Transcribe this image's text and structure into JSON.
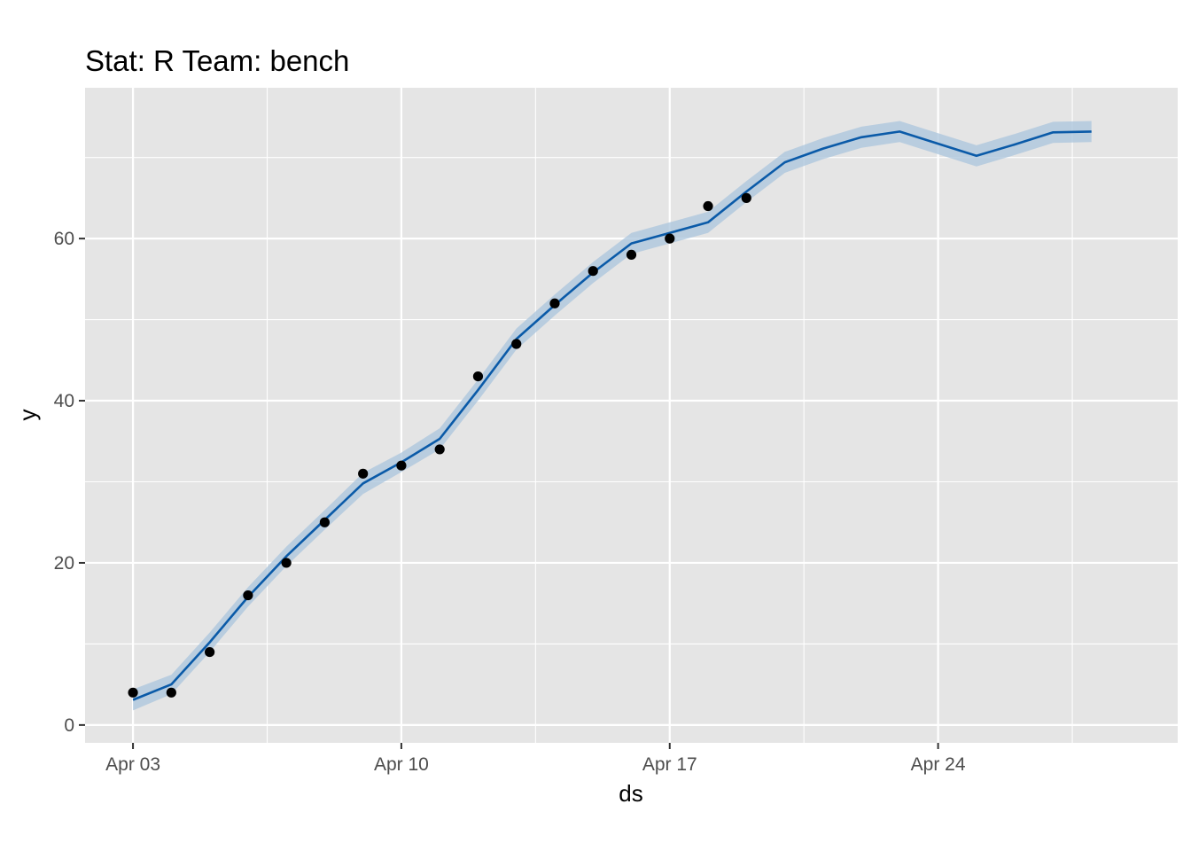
{
  "chart_data": {
    "type": "line",
    "title": "Stat: R Team: bench",
    "xlabel": "ds",
    "ylabel": "y",
    "x_type": "date",
    "x_range": [
      "2020-04-01 18:00",
      "2020-04-30 06:00"
    ],
    "ylim": [
      -2.2,
      78.6
    ],
    "x_ticks": [
      {
        "date": "2020-04-03",
        "label": "Apr 03"
      },
      {
        "date": "2020-04-10",
        "label": "Apr 10"
      },
      {
        "date": "2020-04-17",
        "label": "Apr 17"
      },
      {
        "date": "2020-04-24",
        "label": "Apr 24"
      }
    ],
    "x_minor_grid": [
      "2020-04-06 12:00",
      "2020-04-13 12:00",
      "2020-04-20 12:00",
      "2020-04-27 12:00"
    ],
    "y_ticks": [
      0,
      20,
      40,
      60
    ],
    "y_minor_grid": [
      10,
      30,
      50,
      70
    ],
    "grid": true,
    "panel_background": "#e5e5e5",
    "colors": {
      "forecast_line": "#0a5aa8",
      "interval_band": "#a9c4dc",
      "observed_points": "#000000",
      "grid": "#ffffff"
    },
    "series": [
      {
        "kind": "points",
        "x": [
          "2020-04-03",
          "2020-04-04",
          "2020-04-05",
          "2020-04-06",
          "2020-04-07",
          "2020-04-08",
          "2020-04-09",
          "2020-04-10",
          "2020-04-11",
          "2020-04-12",
          "2020-04-13",
          "2020-04-14",
          "2020-04-15",
          "2020-04-16",
          "2020-04-17",
          "2020-04-18",
          "2020-04-19"
        ],
        "y": [
          4,
          4,
          9,
          16,
          20,
          25,
          31,
          32,
          34,
          43,
          47,
          52,
          56,
          58,
          60,
          64,
          65
        ]
      },
      {
        "kind": "line",
        "x": [
          "2020-04-03",
          "2020-04-04",
          "2020-04-05",
          "2020-04-06",
          "2020-04-07",
          "2020-04-08",
          "2020-04-09",
          "2020-04-10",
          "2020-04-11",
          "2020-04-12",
          "2020-04-13",
          "2020-04-14",
          "2020-04-15",
          "2020-04-16",
          "2020-04-17",
          "2020-04-18",
          "2020-04-19",
          "2020-04-20",
          "2020-04-21",
          "2020-04-22",
          "2020-04-23",
          "2020-04-24",
          "2020-04-25",
          "2020-04-26",
          "2020-04-27",
          "2020-04-28"
        ],
        "y": [
          3.1,
          5.0,
          10.2,
          15.8,
          20.8,
          25.3,
          29.8,
          32.4,
          35.3,
          41.3,
          47.6,
          51.8,
          55.8,
          59.4,
          60.7,
          62.0,
          65.8,
          69.4,
          71.1,
          72.5,
          73.2,
          71.7,
          70.2,
          71.6,
          73.1,
          73.2
        ]
      },
      {
        "kind": "band",
        "x": [
          "2020-04-03",
          "2020-04-04",
          "2020-04-05",
          "2020-04-06",
          "2020-04-07",
          "2020-04-08",
          "2020-04-09",
          "2020-04-10",
          "2020-04-11",
          "2020-04-12",
          "2020-04-13",
          "2020-04-14",
          "2020-04-15",
          "2020-04-16",
          "2020-04-17",
          "2020-04-18",
          "2020-04-19",
          "2020-04-20",
          "2020-04-21",
          "2020-04-22",
          "2020-04-23",
          "2020-04-24",
          "2020-04-25",
          "2020-04-26",
          "2020-04-27",
          "2020-04-28"
        ],
        "lower": [
          1.8,
          3.8,
          9.0,
          14.6,
          19.6,
          24.1,
          28.5,
          31.2,
          34.0,
          40.0,
          46.3,
          50.5,
          54.5,
          58.1,
          59.4,
          60.7,
          64.5,
          68.1,
          69.8,
          71.2,
          71.9,
          70.4,
          68.9,
          70.3,
          71.8,
          71.9
        ],
        "upper": [
          4.4,
          6.2,
          11.4,
          17.0,
          22.0,
          26.5,
          31.1,
          33.6,
          36.6,
          42.6,
          48.9,
          53.1,
          57.1,
          60.7,
          62.0,
          63.3,
          67.1,
          70.7,
          72.4,
          73.8,
          74.5,
          73.0,
          71.5,
          72.9,
          74.4,
          74.5
        ]
      }
    ]
  }
}
